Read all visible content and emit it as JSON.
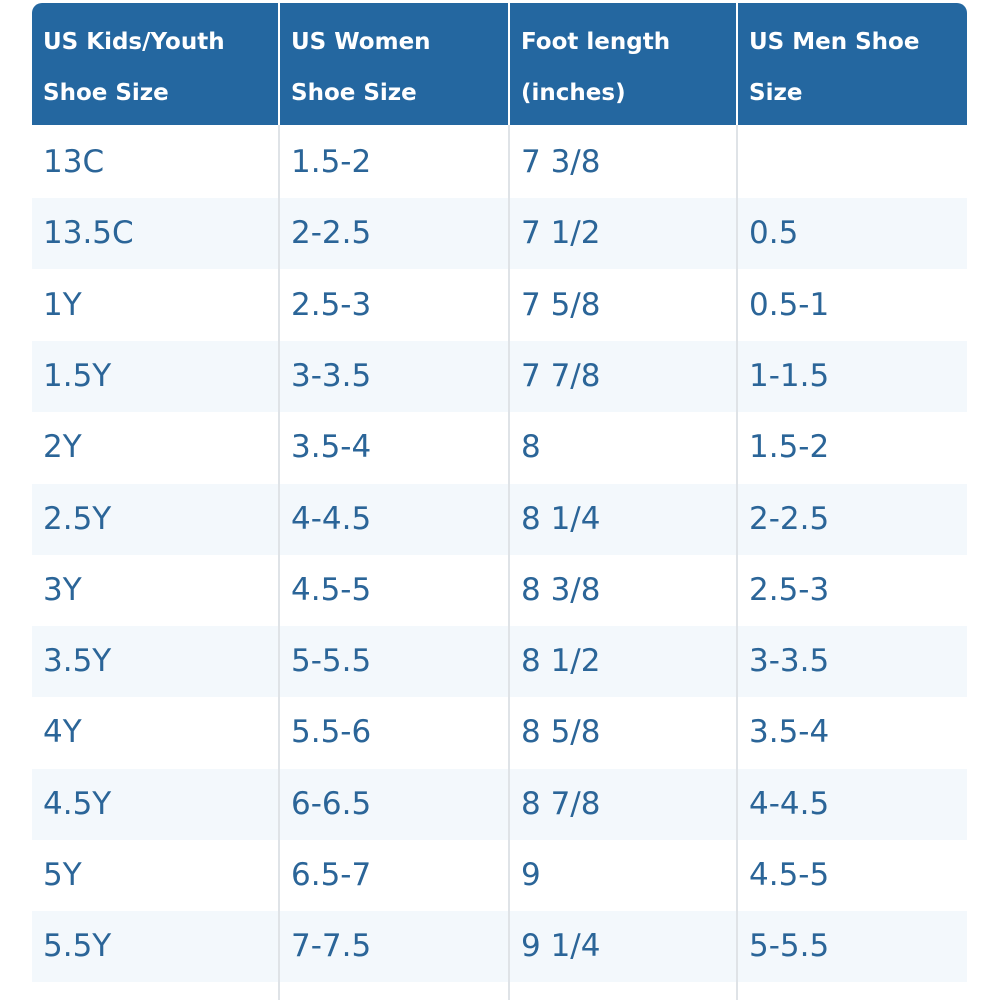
{
  "table": {
    "header": [
      [
        "US Kids/Youth",
        "Shoe Size"
      ],
      [
        "US Women",
        "Shoe Size"
      ],
      [
        "Foot length",
        "(inches)"
      ],
      [
        "US Men Shoe",
        "Size"
      ]
    ],
    "rows": [
      [
        "13C",
        "1.5-2",
        "7 3/8",
        null
      ],
      [
        "13.5C",
        "2-2.5",
        "7 1/2",
        "0.5"
      ],
      [
        "1Y",
        "2.5-3",
        "7 5/8",
        "0.5-1"
      ],
      [
        "1.5Y",
        "3-3.5",
        "7 7/8",
        "1-1.5"
      ],
      [
        "2Y",
        "3.5-4",
        "8",
        "1.5-2"
      ],
      [
        "2.5Y",
        "4-4.5",
        "8 1/4",
        "2-2.5"
      ],
      [
        "3Y",
        "4.5-5",
        "8 3/8",
        "2.5-3"
      ],
      [
        "3.5Y",
        "5-5.5",
        "8 1/2",
        "3-3.5"
      ],
      [
        "4Y",
        "5.5-6",
        "8 5/8",
        "3.5-4"
      ],
      [
        "4.5Y",
        "6-6.5",
        "8 7/8",
        "4-4.5"
      ],
      [
        "5Y",
        "6.5-7",
        "9",
        "4.5-5"
      ],
      [
        "5.5Y",
        "7-7.5",
        "9 1/4",
        "5-5.5"
      ]
    ]
  }
}
